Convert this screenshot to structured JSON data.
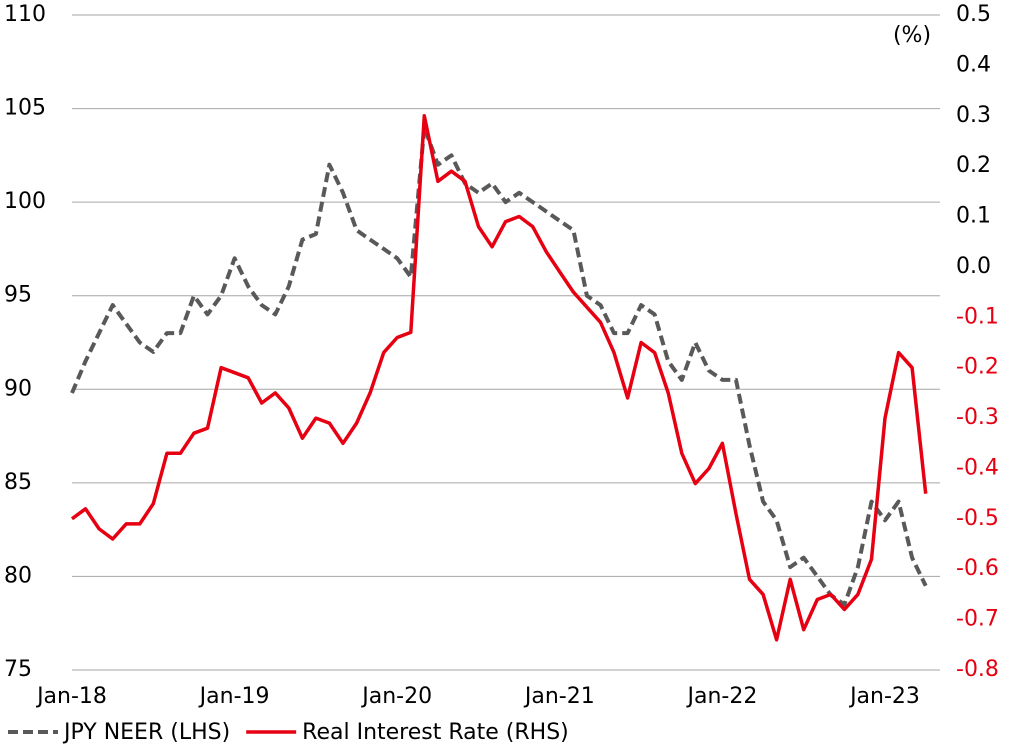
{
  "chart_data": {
    "type": "line",
    "x": [
      "2018-01",
      "2018-02",
      "2018-03",
      "2018-04",
      "2018-05",
      "2018-06",
      "2018-07",
      "2018-08",
      "2018-09",
      "2018-10",
      "2018-11",
      "2018-12",
      "2019-01",
      "2019-02",
      "2019-03",
      "2019-04",
      "2019-05",
      "2019-06",
      "2019-07",
      "2019-08",
      "2019-09",
      "2019-10",
      "2019-11",
      "2019-12",
      "2020-01",
      "2020-02",
      "2020-03",
      "2020-04",
      "2020-05",
      "2020-06",
      "2020-07",
      "2020-08",
      "2020-09",
      "2020-10",
      "2020-11",
      "2020-12",
      "2021-01",
      "2021-02",
      "2021-03",
      "2021-04",
      "2021-05",
      "2021-06",
      "2021-07",
      "2021-08",
      "2021-09",
      "2021-10",
      "2021-11",
      "2021-12",
      "2022-01",
      "2022-02",
      "2022-03",
      "2022-04",
      "2022-05",
      "2022-06",
      "2022-07",
      "2022-08",
      "2022-09",
      "2022-10",
      "2022-11",
      "2022-12",
      "2023-01",
      "2023-02",
      "2023-03",
      "2023-04"
    ],
    "xticks": [
      {
        "value": "2018-01",
        "label": "Jan-18"
      },
      {
        "value": "2019-01",
        "label": "Jan-19"
      },
      {
        "value": "2020-01",
        "label": "Jan-20"
      },
      {
        "value": "2021-01",
        "label": "Jan-21"
      },
      {
        "value": "2022-01",
        "label": "Jan-22"
      },
      {
        "value": "2023-01",
        "label": "Jan-23"
      }
    ],
    "series": [
      {
        "name": "JPY NEER (LHS)",
        "color": "#595959",
        "dash": true,
        "values": [
          89.8,
          91.5,
          93,
          94.5,
          93.5,
          92.5,
          92,
          93,
          93,
          95,
          94,
          95,
          97,
          95.5,
          94.5,
          94,
          95.5,
          98,
          98.3,
          102,
          100.5,
          98.5,
          98,
          97.5,
          97,
          96,
          104,
          102,
          102.5,
          101,
          100.5,
          101,
          100,
          100.5,
          100,
          99.5,
          99,
          98.5,
          95,
          94.5,
          93,
          93,
          94.5,
          94,
          91.5,
          90.5,
          92.5,
          91,
          90.5,
          90.5,
          87,
          84,
          83,
          80.5,
          81,
          80,
          79,
          78.5,
          80.5,
          84,
          83,
          84,
          81,
          79.5
        ]
      },
      {
        "name": "Real Interest Rate (RHS)",
        "color": "#e60012",
        "axis": "y2",
        "values": [
          -0.5,
          -0.48,
          -0.52,
          -0.54,
          -0.51,
          -0.51,
          -0.47,
          -0.37,
          -0.37,
          -0.33,
          -0.32,
          -0.2,
          -0.21,
          -0.22,
          -0.27,
          -0.25,
          -0.28,
          -0.34,
          -0.3,
          -0.31,
          -0.35,
          -0.31,
          -0.25,
          -0.17,
          -0.14,
          -0.13,
          0.3,
          0.17,
          0.19,
          0.17,
          0.08,
          0.04,
          0.09,
          0.1,
          0.08,
          0.03,
          -0.01,
          -0.05,
          -0.08,
          -0.11,
          -0.17,
          -0.26,
          -0.15,
          -0.17,
          -0.25,
          -0.37,
          -0.43,
          -0.4,
          -0.35,
          -0.49,
          -0.62,
          -0.65,
          -0.74,
          -0.62,
          -0.72,
          -0.66,
          -0.65,
          -0.68,
          -0.65,
          -0.58,
          -0.3,
          -0.17,
          -0.2,
          -0.45
        ]
      }
    ],
    "ylim": [
      75,
      110
    ],
    "yticks": [
      75,
      80,
      85,
      90,
      95,
      100,
      105,
      110
    ],
    "y2lim": [
      -0.8,
      0.5
    ],
    "y2ticks": [
      -0.8,
      -0.7,
      -0.6,
      -0.5,
      -0.4,
      -0.3,
      -0.2,
      -0.1,
      {
        "value": 0,
        "label": "0.0"
      },
      0.1,
      0.2,
      0.3,
      0.4,
      0.5
    ],
    "y2_unit": "(%)",
    "grid": true,
    "legend": "bottom"
  }
}
